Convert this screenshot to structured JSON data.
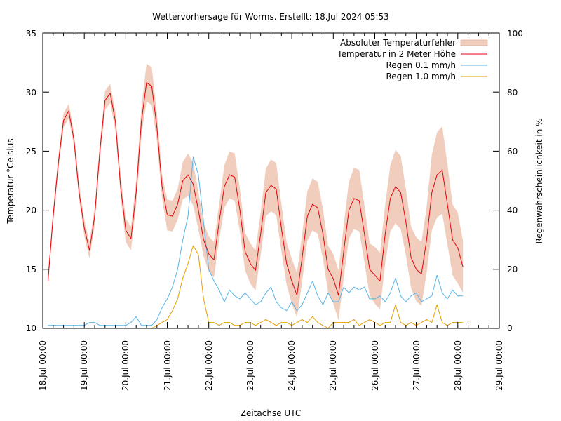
{
  "chart_data": {
    "type": "line",
    "title": "Wettervorhersage für Worms. Erstellt: 18.Jul 2024 05:53",
    "xlabel": "Zeitachse UTC",
    "ylabel": "Temperatur °Celsius",
    "y2label": "Regenwahrscheinlichkeit in %",
    "ylim": [
      10,
      35
    ],
    "y2lim": [
      0,
      100
    ],
    "yticks": [
      "10",
      "15",
      "20",
      "25",
      "30",
      "35"
    ],
    "y2ticks": [
      "0",
      "20",
      "40",
      "60",
      "80",
      "100"
    ],
    "xticks": [
      "18.Jul 00:00",
      "19.Jul 00:00",
      "20.Jul 00:00",
      "21.Jul 00:00",
      "22.Jul 00:00",
      "23.Jul 00:00",
      "24.Jul 00:00",
      "25.Jul 00:00",
      "26.Jul 00:00",
      "27.Jul 00:00",
      "28.Jul 00:00",
      "29.Jul 00:00"
    ],
    "x_start_hours": 3,
    "x_step_hours": 3,
    "x_range_hours": [
      0,
      264
    ],
    "legend_position": "top-right",
    "series": [
      {
        "name": "Absoluter Temperaturfehler",
        "kind": "band",
        "color": "#f0cdbd",
        "halfwidth": [
          0.6,
          0.6,
          0.6,
          0.6,
          0.6,
          0.6,
          0.6,
          0.7,
          0.7,
          0.7,
          0.7,
          0.8,
          0.8,
          0.8,
          0.8,
          1.0,
          1.0,
          1.0,
          1.2,
          1.6,
          1.6,
          1.2,
          1.0,
          1.3,
          1.3,
          1.3,
          1.6,
          1.8,
          1.8,
          1.6,
          1.4,
          1.5,
          1.5,
          1.5,
          1.8,
          2.0,
          2.0,
          1.8,
          1.6,
          1.7,
          1.7,
          1.8,
          2.0,
          2.2,
          2.2,
          2.0,
          1.8,
          1.9,
          1.9,
          2.0,
          2.1,
          2.2,
          2.2,
          2.1,
          2.0,
          2.1,
          2.1,
          2.2,
          2.4,
          2.6,
          2.6,
          2.4,
          2.2,
          2.4,
          2.4,
          2.5,
          2.8,
          3.1,
          3.1,
          2.8,
          2.6,
          2.7,
          2.7,
          2.8,
          3.2,
          3.6,
          3.7,
          3.4,
          3.0,
          3.0,
          2.2
        ]
      },
      {
        "name": "Temperatur in 2 Meter Höhe",
        "kind": "line",
        "color": "#e8000b",
        "values": [
          14.0,
          19.5,
          24.0,
          27.6,
          28.4,
          26.0,
          21.5,
          18.5,
          16.6,
          19.5,
          25.0,
          29.3,
          29.9,
          27.5,
          22.0,
          18.3,
          17.6,
          21.5,
          27.5,
          30.8,
          30.5,
          27.0,
          22.0,
          19.6,
          19.5,
          20.5,
          22.5,
          23.0,
          22.2,
          20.0,
          17.5,
          16.3,
          15.8,
          19.0,
          22.0,
          23.0,
          22.8,
          20.0,
          16.5,
          15.5,
          14.9,
          18.0,
          21.5,
          22.1,
          21.8,
          18.5,
          15.5,
          14.0,
          12.8,
          16.0,
          19.5,
          20.5,
          20.2,
          18.0,
          15.0,
          14.2,
          12.8,
          16.5,
          20.0,
          21.0,
          20.8,
          18.0,
          15.0,
          14.5,
          14.0,
          18.0,
          21.0,
          22.0,
          21.5,
          19.0,
          16.0,
          15.0,
          14.6,
          17.5,
          21.5,
          23.0,
          23.4,
          20.5,
          17.5,
          16.8,
          15.2
        ]
      },
      {
        "name": "Regen 0.1 mm/h",
        "kind": "line",
        "axis": "y2",
        "color": "#56b4e9",
        "values": [
          1,
          1,
          1,
          1,
          1,
          1,
          1,
          1,
          2,
          2,
          1,
          1,
          1,
          1,
          1,
          1,
          2,
          4,
          1,
          1,
          1,
          3,
          7,
          10,
          14,
          20,
          30,
          38,
          58,
          52,
          36,
          20,
          16,
          13,
          9,
          13,
          11,
          10,
          12,
          10,
          8,
          9,
          12,
          14,
          9,
          7,
          6,
          9,
          6,
          8,
          12,
          16,
          11,
          8,
          12,
          9,
          9,
          14,
          12,
          14,
          13,
          14,
          10,
          10,
          11,
          9,
          12,
          17,
          11,
          9,
          11,
          12,
          9,
          10,
          11,
          18,
          12,
          10,
          13,
          11,
          11
        ]
      },
      {
        "name": "Regen 1.0 mm/h",
        "kind": "line",
        "axis": "y2",
        "color": "#e69f00",
        "values": [
          0,
          0,
          0,
          0,
          0,
          0,
          0,
          0,
          0,
          0,
          0,
          0,
          0,
          0,
          0,
          0,
          0,
          0,
          0,
          0,
          0,
          1,
          2,
          3,
          6,
          10,
          17,
          22,
          28,
          25,
          10,
          2,
          2,
          1,
          2,
          2,
          1,
          1,
          2,
          2,
          1,
          2,
          3,
          2,
          1,
          2,
          2,
          1,
          2,
          3,
          2,
          4,
          2,
          1,
          0,
          2,
          2,
          2,
          2,
          3,
          1,
          2,
          3,
          2,
          1,
          2,
          2,
          8,
          2,
          1,
          2,
          1,
          2,
          3,
          2,
          8,
          2,
          1,
          2,
          2,
          2
        ]
      }
    ]
  }
}
